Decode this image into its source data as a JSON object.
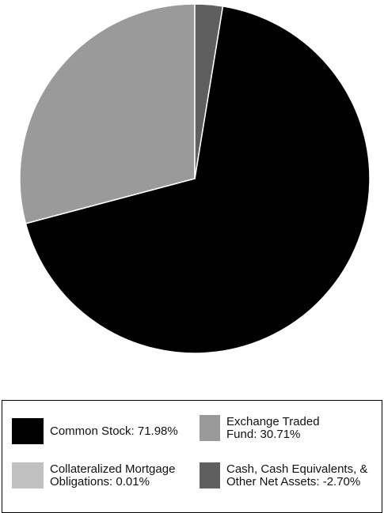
{
  "chart_data": {
    "type": "pie",
    "slices": [
      {
        "label": "Exchange Traded Fund: 30.71%",
        "value": 30.71,
        "color": "#9a9a9b"
      },
      {
        "label": "Collateralized Mortgage Obligations: 0.01%",
        "value": 0.01,
        "color": "#c0c0c1"
      },
      {
        "label": "Common Stock: 71.98%",
        "value": 71.98,
        "color": "#000000"
      },
      {
        "label": "Cash, Cash Equivalents, & Other Net Assets: -2.70%",
        "value": -2.7,
        "color": "#5f5f60"
      }
    ],
    "legend": {
      "placement": "bottom",
      "items": [
        {
          "text": "Common Stock: 71.98%",
          "color": "#000000"
        },
        {
          "text": "Exchange Traded Fund: 30.71%",
          "color": "#9a9a9b"
        },
        {
          "text": "Collateralized Mortgage Obligations: 0.01%",
          "color": "#c0c0c1"
        },
        {
          "text": "Cash, Cash Equivalents, & Other Net Assets: -2.70%",
          "color": "#5f5f60"
        }
      ]
    },
    "slice_order": "counterclockwise from 12 o'clock; negative value drawn at its absolute size"
  }
}
